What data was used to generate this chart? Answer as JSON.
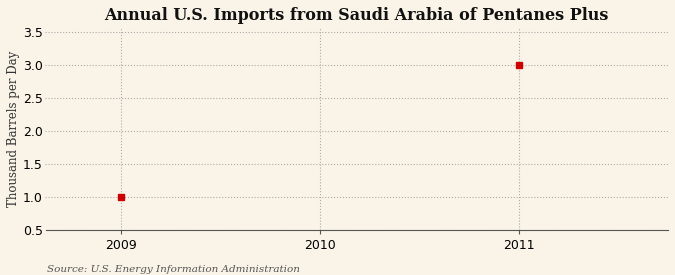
{
  "title": "Annual U.S. Imports from Saudi Arabia of Pentanes Plus",
  "ylabel": "Thousand Barrels per Day",
  "source": "Source: U.S. Energy Information Administration",
  "x_data": [
    2009,
    2011
  ],
  "y_data": [
    1.0,
    3.0
  ],
  "xlim": [
    2008.62,
    2011.75
  ],
  "ylim": [
    0.5,
    3.55
  ],
  "xticks": [
    2009,
    2010,
    2011
  ],
  "yticks": [
    0.5,
    1.0,
    1.5,
    2.0,
    2.5,
    3.0,
    3.5
  ],
  "background_color": "#FAF4E8",
  "plot_bg_color": "#FAF4E8",
  "marker_color": "#CC0000",
  "grid_color": "#AAAAAA",
  "title_fontsize": 11.5,
  "label_fontsize": 8.5,
  "tick_fontsize": 9,
  "source_fontsize": 7.5
}
